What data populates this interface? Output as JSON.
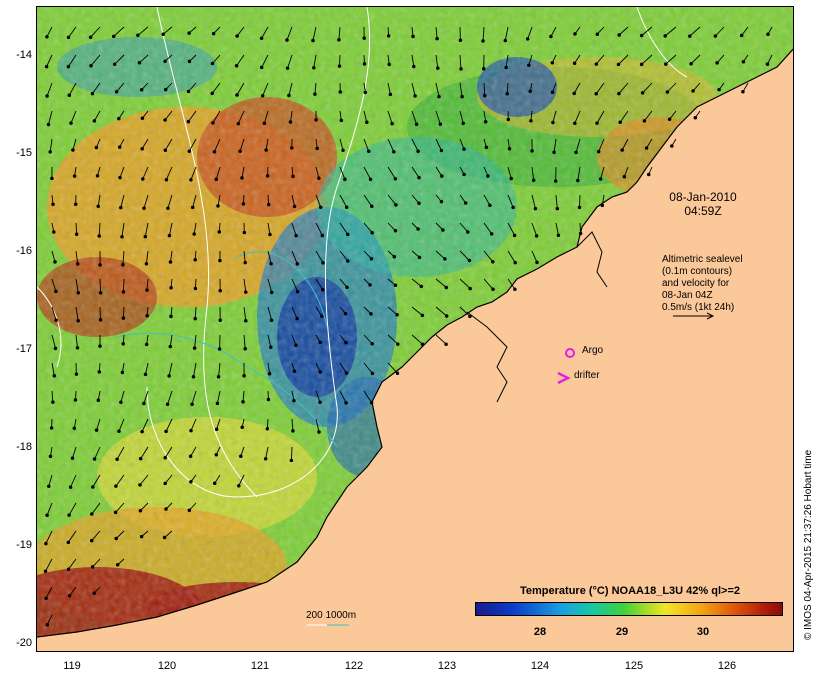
{
  "map": {
    "y_ticks": [
      "-14",
      "-15",
      "-16",
      "-17",
      "-18",
      "-19",
      "-20"
    ],
    "x_ticks": [
      "119",
      "120",
      "121",
      "122",
      "123",
      "124",
      "125",
      "126"
    ],
    "date_line1": "08-Jan-2010",
    "date_line2": "04:59Z",
    "altimetry_note": [
      "Altimetric sealevel",
      "(0.1m contours)",
      "and velocity for",
      "08-Jan 04Z",
      "0.5m/s (1kt 24h)"
    ],
    "argo_label": "Argo",
    "drifter_label": "drifter",
    "depth_label": "200  1000m",
    "legend_title": "Temperature (°C) NOAA18_L3U 42% ql>=2",
    "colorbar_ticks": [
      "28",
      "29",
      "30"
    ],
    "credit": "© IMOS 04-Apr-2015 21:37:26 Hobart time"
  },
  "colors": {
    "land": "#fbc89a",
    "argo": "#e020e0",
    "contour": "#ffffff",
    "isobath": "#40c0c0"
  }
}
